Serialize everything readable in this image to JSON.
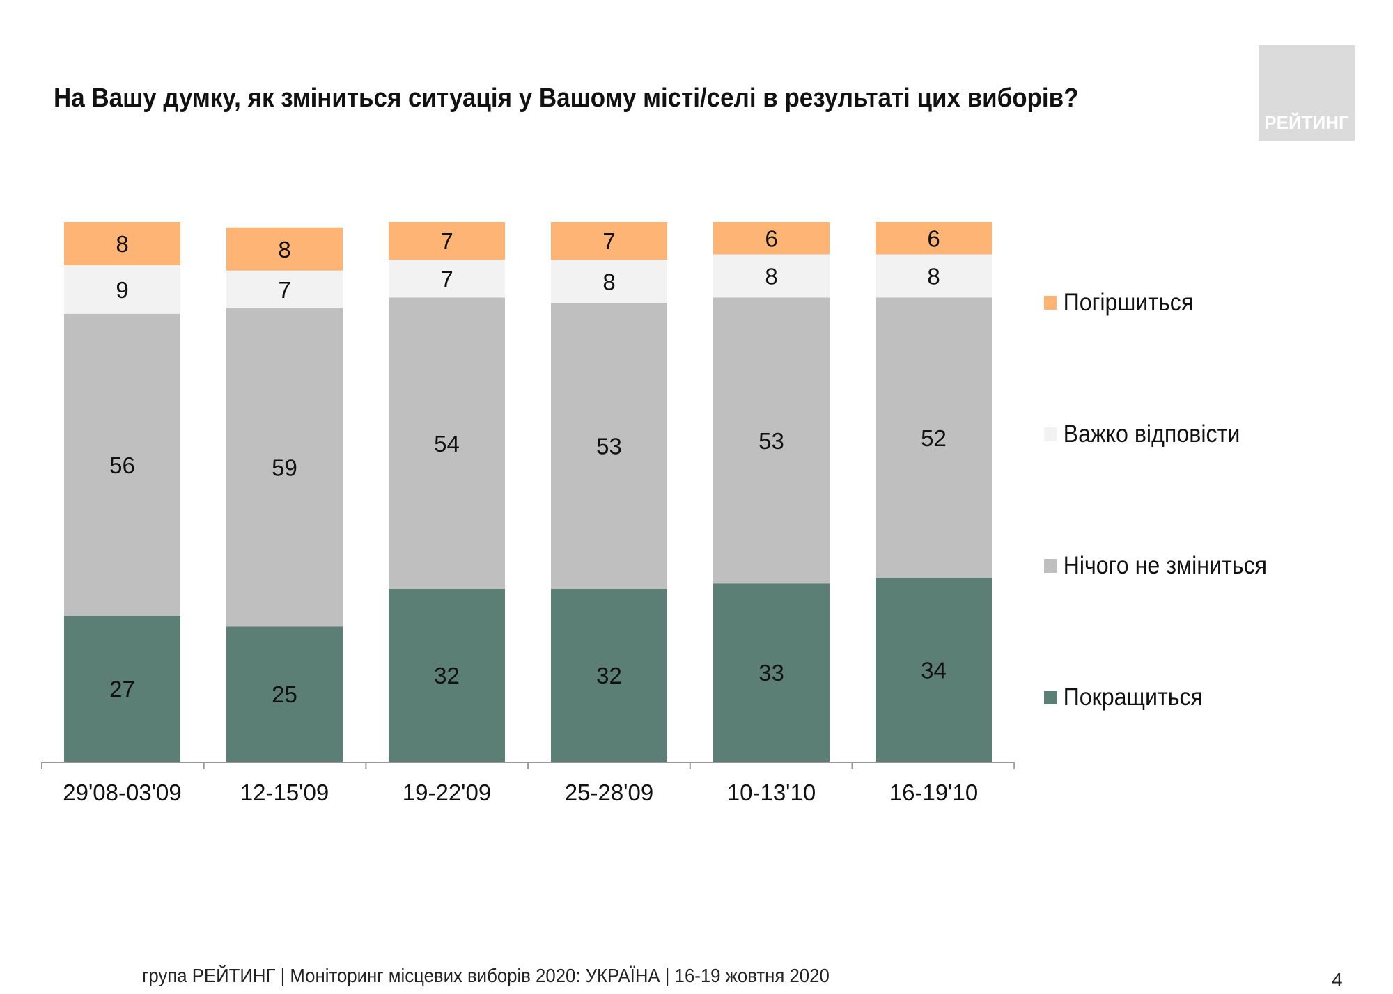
{
  "title": "На Вашу думку, як зміниться ситуація у Вашому місті/селі в результаті цих виборів?",
  "logo_text": "РЕЙТИНГ",
  "footer": "група РЕЙТИНГ | Моніторинг місцевих виборів 2020: УКРАЇНА | 16-19 жовтня 2020",
  "page_number": "4",
  "chart_data": {
    "type": "bar",
    "stacked": true,
    "categories": [
      "29'08-03'09",
      "12-15'09",
      "19-22'09",
      "25-28'09",
      "10-13'10",
      "16-19'10"
    ],
    "series": [
      {
        "name": "Покращиться",
        "color": "#5B7F75",
        "values": [
          27,
          25,
          32,
          32,
          33,
          34
        ]
      },
      {
        "name": "Нічого не зміниться",
        "color": "#BFBFBF",
        "values": [
          56,
          59,
          54,
          53,
          53,
          52
        ]
      },
      {
        "name": "Важко відповісти",
        "color": "#F2F2F2",
        "values": [
          9,
          7,
          7,
          8,
          8,
          8
        ]
      },
      {
        "name": "Погіршиться",
        "color": "#FDB474",
        "values": [
          8,
          8,
          7,
          7,
          6,
          6
        ]
      }
    ],
    "legend_position": "right",
    "grid": false,
    "data_labels": true
  }
}
